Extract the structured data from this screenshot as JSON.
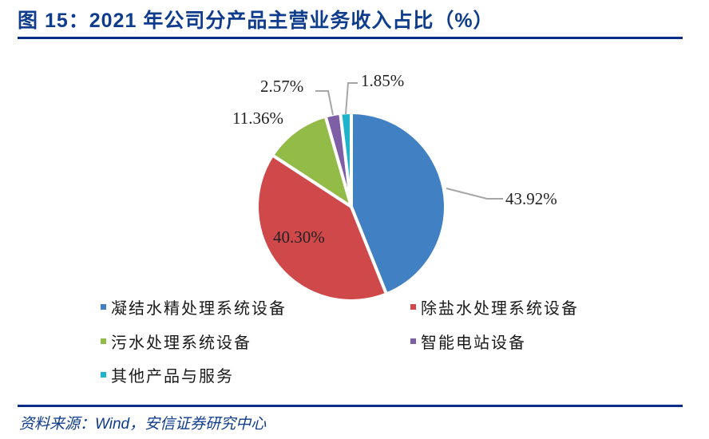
{
  "header": {
    "title": "图 15：2021 年公司分产品主营业务收入占比（%）"
  },
  "footer": {
    "source": "资料来源：Wind，安信证券研究中心"
  },
  "chart_data": {
    "type": "pie",
    "title": "2021 年公司分产品主营业务收入占比（%）",
    "categories": [
      "凝结水精处理系统设备",
      "除盐水处理系统设备",
      "污水处理系统设备",
      "智能电站设备",
      "其他产品与服务"
    ],
    "values": [
      43.92,
      40.3,
      11.36,
      2.57,
      1.85
    ],
    "labels": [
      "43.92%",
      "40.30%",
      "11.36%",
      "2.57%",
      "1.85%"
    ],
    "colors": [
      "#4180c2",
      "#cf484a",
      "#93bb47",
      "#7e5ea5",
      "#1fb4cc"
    ],
    "start_angle": "12 o'clock, clockwise",
    "legend_position": "bottom"
  },
  "legend": {
    "items": [
      {
        "label": "凝结水精处理系统设备",
        "color": "#4180c2"
      },
      {
        "label": "除盐水处理系统设备",
        "color": "#cf484a"
      },
      {
        "label": "污水处理系统设备",
        "color": "#93bb47"
      },
      {
        "label": "智能电站设备",
        "color": "#7e5ea5"
      },
      {
        "label": "其他产品与服务",
        "color": "#1fb4cc"
      }
    ]
  }
}
